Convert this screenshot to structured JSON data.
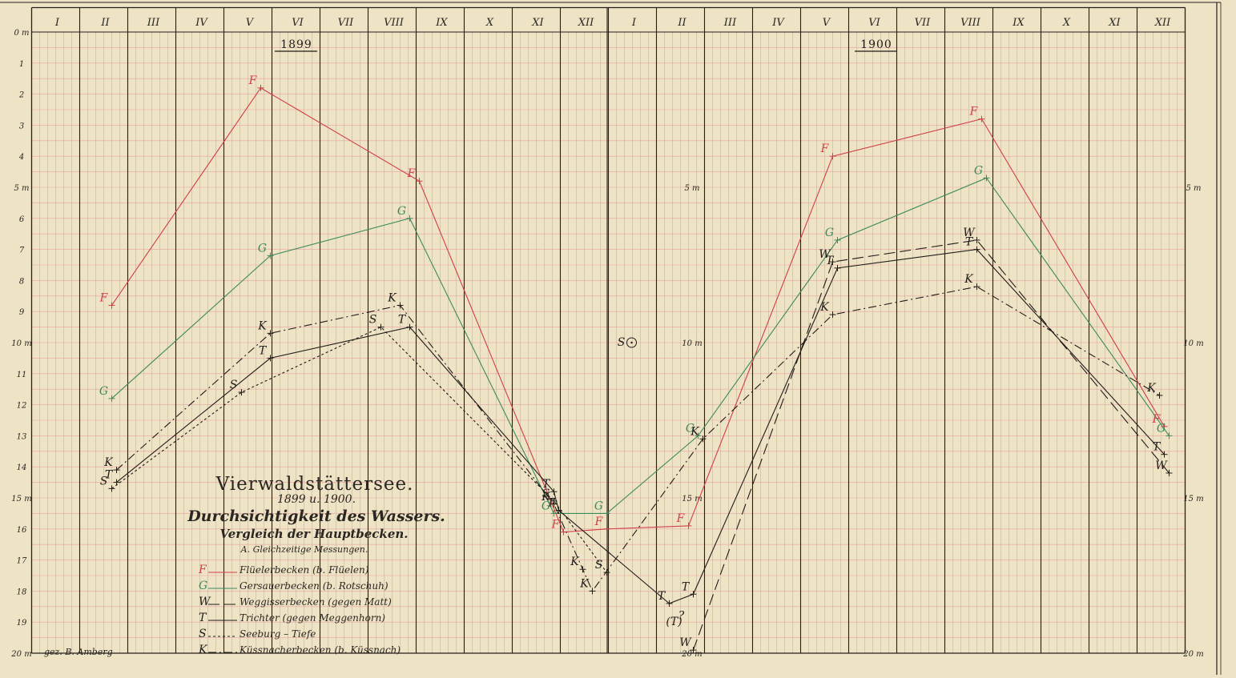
{
  "chart_data": {
    "type": "line",
    "title": "Vierwaldstättersee.",
    "subtitle": "1899 u. 1900.",
    "heading": "Durchsichtigkeit des Wassers.",
    "subheading": "Vergleich der Hauptbecken.",
    "subheading2": "A. Gleichzeitige Messungen.",
    "credit": "gez. B. Amberg",
    "years": [
      "1899",
      "1900"
    ],
    "months": [
      "I",
      "II",
      "III",
      "IV",
      "V",
      "VI",
      "VII",
      "VIII",
      "IX",
      "X",
      "XI",
      "XII",
      "I",
      "II",
      "III",
      "IV",
      "V",
      "VI",
      "VII",
      "VIII",
      "IX",
      "X",
      "XI",
      "XII"
    ],
    "depth_ticks": [
      "0 m",
      "1",
      "2",
      "3",
      "4",
      "5 m",
      "6",
      "7",
      "8",
      "9",
      "10 m",
      "11",
      "12",
      "13",
      "14",
      "15 m",
      "16",
      "17",
      "18",
      "19",
      "20 m"
    ],
    "depth_inner_labels": [
      "5 m",
      "10 m",
      "15 m",
      "20 m"
    ],
    "depth_right_labels": [
      "5 m",
      "10 m",
      "15 m",
      "20 m"
    ],
    "ylim": [
      0,
      20
    ],
    "y_inverted": true,
    "xlabel": "",
    "ylabel": "",
    "x_unit": "month index (1 = January 1899)",
    "legend": [
      {
        "key": "F",
        "label": "Flüelerbecken (b. Flüelen)",
        "color": "#cf3f46",
        "dash": ""
      },
      {
        "key": "G",
        "label": "Gersauerbecken (b. Rotschuh)",
        "color": "#3c8a5c",
        "dash": ""
      },
      {
        "key": "W",
        "label": "Weggisserbecken (gegen Matt)",
        "color": "#1f1c1a",
        "dash": "14,6"
      },
      {
        "key": "T",
        "label": "Trichter (gegen Meggenhorn)",
        "color": "#1f1c1a",
        "dash": ""
      },
      {
        "key": "S",
        "label": "Seeburg – Tiefe",
        "color": "#1f1c1a",
        "dash": "3,3"
      },
      {
        "key": "K",
        "label": "Küssnacherbecken (b. Küssnach)",
        "color": "#1f1c1a",
        "dash": "10,4,2,4"
      }
    ],
    "series": [
      {
        "name": "F",
        "color": "#cf3f46",
        "dash": "",
        "x": [
          2.0,
          5.1,
          8.4,
          11.4,
          12.3,
          14.0,
          17.0,
          20.1,
          23.9
        ],
        "y": [
          8.8,
          1.8,
          4.8,
          16.1,
          16.0,
          15.9,
          4.0,
          2.8,
          12.7
        ]
      },
      {
        "name": "G",
        "color": "#3c8a5c",
        "dash": "",
        "x": [
          2.0,
          5.3,
          8.2,
          11.2,
          12.3,
          14.2,
          17.1,
          20.2,
          24.0
        ],
        "y": [
          11.8,
          7.2,
          6.0,
          15.5,
          15.5,
          13.0,
          6.7,
          4.7,
          13.0
        ]
      },
      {
        "name": "W",
        "color": "#1f1c1a",
        "dash": "14,6",
        "x": [
          14.1,
          17.0,
          20.0,
          24.0
        ],
        "y": [
          19.9,
          7.4,
          6.7,
          14.2
        ]
      },
      {
        "name": "T",
        "color": "#1f1c1a",
        "dash": "",
        "x": [
          2.1,
          5.3,
          8.2,
          11.2,
          11.3,
          13.6,
          14.1,
          17.1,
          20.0,
          23.9
        ],
        "y": [
          14.5,
          10.5,
          9.5,
          14.8,
          15.4,
          18.4,
          18.1,
          7.6,
          7.0,
          13.6
        ]
      },
      {
        "name": "S",
        "color": "#1f1c1a",
        "dash": "3,3",
        "x": [
          2.0,
          4.7,
          7.6,
          11.2,
          12.3
        ],
        "y": [
          14.7,
          11.6,
          9.5,
          15.1,
          17.4
        ]
      },
      {
        "name": "K",
        "color": "#1f1c1a",
        "dash": "10,4,2,4",
        "x": [
          2.1,
          5.3,
          8.0,
          11.2,
          11.8,
          12.0,
          14.3,
          17.0,
          20.0,
          23.8
        ],
        "y": [
          14.1,
          9.7,
          8.8,
          15.2,
          17.3,
          18.0,
          13.1,
          9.1,
          8.2,
          11.7
        ]
      }
    ],
    "annotations": [
      {
        "text": "S",
        "x": 12.6,
        "y": 10.0
      },
      {
        "text": "(T)",
        "x": 13.7,
        "y": 19.0
      },
      {
        "text": "?",
        "x": 13.85,
        "y": 18.8
      }
    ],
    "legend_position": "bottom-left",
    "grid": true
  }
}
